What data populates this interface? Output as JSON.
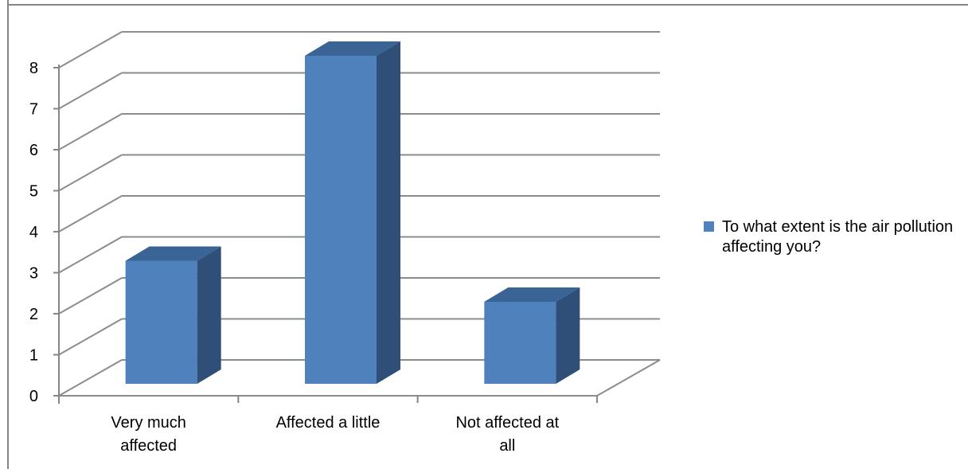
{
  "chart_data": {
    "type": "bar",
    "title": "",
    "xlabel": "",
    "ylabel": "",
    "categories": [
      "Very much affected",
      "Affected a little",
      "Not affected at all"
    ],
    "category_lines": [
      [
        "Very much",
        "affected"
      ],
      [
        "Affected a little"
      ],
      [
        "Not affected at",
        "all"
      ]
    ],
    "series": [
      {
        "name": "To what extent is the air pollution affecting you?",
        "values": [
          3,
          8,
          2
        ]
      }
    ],
    "ylim": [
      0,
      8
    ],
    "yticks": [
      "0",
      "1",
      "2",
      "3",
      "4",
      "5",
      "6",
      "7",
      "8"
    ],
    "grid": true,
    "three_d": true,
    "legend_position": "right",
    "colors": {
      "bar_front": "#4f81bd",
      "bar_top": "#3a6396",
      "bar_side": "#2f4f79",
      "grid": "#8c8c8c",
      "axis": "#868686",
      "frame": "#868686"
    }
  }
}
